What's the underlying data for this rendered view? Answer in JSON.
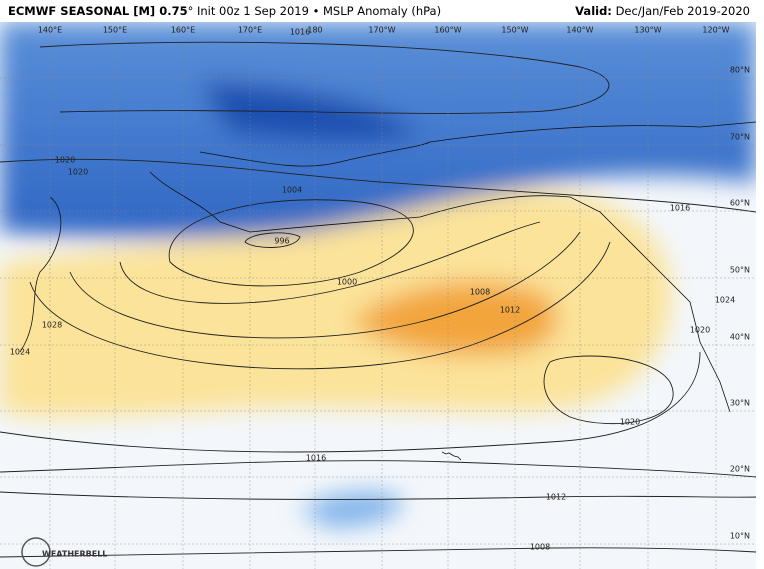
{
  "header": {
    "title_bold": "ECMWF SEASONAL [M] 0.75",
    "title_rest": "° Init 00z 1 Sep 2019 • MSLP Anomaly (hPa)",
    "valid_label": "Valid:",
    "valid_value": "Dec/Jan/Feb 2019-2020"
  },
  "map": {
    "longitude_labels": [
      "140°E",
      "150°E",
      "160°E",
      "170°E",
      "180",
      "170°W",
      "160°W",
      "150°W",
      "140°W",
      "130°W",
      "120°W"
    ],
    "latitude_labels": [
      "80°N",
      "70°N",
      "60°N",
      "50°N",
      "40°N",
      "30°N",
      "20°N",
      "10°N"
    ],
    "isobar_labels": [
      1016,
      1020,
      1020,
      1004,
      996,
      1000,
      1008,
      1012,
      1016,
      1024,
      1020,
      1028,
      1024,
      1020,
      1016,
      1012,
      1008
    ],
    "logo": "WEATHERBELL"
  }
}
